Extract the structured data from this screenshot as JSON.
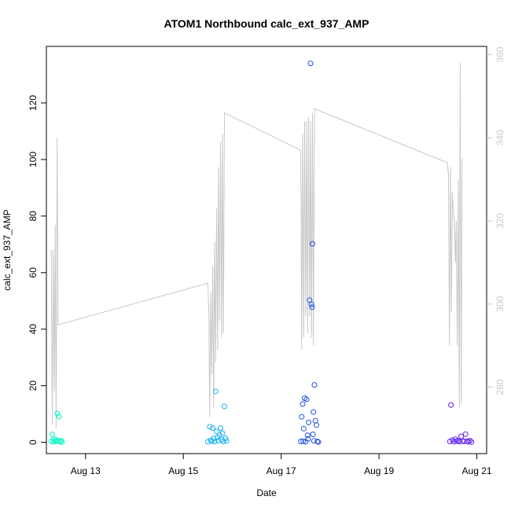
{
  "chart_data": {
    "type": "scatter",
    "title": "ATOM1 Northbound calc_ext_937_AMP",
    "xlabel": "Date",
    "ylabel": "calc_ext_937_AMP",
    "x_ticks": [
      "Aug 13",
      "Aug 15",
      "Aug 17",
      "Aug 19",
      "Aug 21"
    ],
    "y_ticks": [
      "0",
      "20",
      "40",
      "60",
      "80",
      "100",
      "120"
    ],
    "y2_ticks": [
      "280",
      "300",
      "320",
      "340",
      "360"
    ],
    "xlim": [
      12.2,
      21.2
    ],
    "ylim": [
      -4,
      140
    ],
    "y2lim": [
      264,
      362
    ],
    "x_tick_values": [
      13,
      15,
      17,
      19,
      21
    ],
    "y_tick_values": [
      0,
      20,
      40,
      60,
      80,
      100,
      120
    ],
    "y2_tick_values": [
      280,
      300,
      320,
      340,
      360
    ],
    "grid": false,
    "legend": "none",
    "colors": {
      "secondary_line": "#c8c8c8",
      "right_axis": "#c8c8c8",
      "points": [
        "#00f5c8",
        "#1ab2f0",
        "#2050e8",
        "#6020f0"
      ]
    },
    "points": [
      {
        "x": 12.3,
        "y": 0.4
      },
      {
        "x": 12.32,
        "y": 2.8
      },
      {
        "x": 12.34,
        "y": 0.2
      },
      {
        "x": 12.36,
        "y": 1.1
      },
      {
        "x": 12.38,
        "y": 0.3
      },
      {
        "x": 12.4,
        "y": 0.8
      },
      {
        "x": 12.42,
        "y": 10.2
      },
      {
        "x": 12.44,
        "y": 0.5
      },
      {
        "x": 12.46,
        "y": 9.1
      },
      {
        "x": 12.48,
        "y": 0.2
      },
      {
        "x": 12.5,
        "y": 0.6
      },
      {
        "x": 12.52,
        "y": 0.1
      },
      {
        "x": 15.5,
        "y": 0.2
      },
      {
        "x": 15.54,
        "y": 5.5
      },
      {
        "x": 15.58,
        "y": 0.4
      },
      {
        "x": 15.6,
        "y": 5.0
      },
      {
        "x": 15.62,
        "y": 1.3
      },
      {
        "x": 15.64,
        "y": 0.3
      },
      {
        "x": 15.66,
        "y": 18.0
      },
      {
        "x": 15.68,
        "y": 3.8
      },
      {
        "x": 15.7,
        "y": 1.8
      },
      {
        "x": 15.72,
        "y": 0.6
      },
      {
        "x": 15.74,
        "y": 2.6
      },
      {
        "x": 15.76,
        "y": 5.0
      },
      {
        "x": 15.78,
        "y": 0.9
      },
      {
        "x": 15.8,
        "y": 3.2
      },
      {
        "x": 15.82,
        "y": 0.3
      },
      {
        "x": 15.84,
        "y": 12.7
      },
      {
        "x": 15.86,
        "y": 1.4
      },
      {
        "x": 15.88,
        "y": 0.5
      },
      {
        "x": 15.56,
        "y": 0.7
      },
      {
        "x": 17.4,
        "y": 0.3
      },
      {
        "x": 17.42,
        "y": 9.0
      },
      {
        "x": 17.44,
        "y": 13.5
      },
      {
        "x": 17.46,
        "y": 4.8
      },
      {
        "x": 17.48,
        "y": 15.6
      },
      {
        "x": 17.5,
        "y": 0.2
      },
      {
        "x": 17.52,
        "y": 15.2
      },
      {
        "x": 17.54,
        "y": 2.5
      },
      {
        "x": 17.56,
        "y": 7.0
      },
      {
        "x": 17.58,
        "y": 50.3
      },
      {
        "x": 17.6,
        "y": 134.0
      },
      {
        "x": 17.62,
        "y": 48.8
      },
      {
        "x": 17.63,
        "y": 47.8
      },
      {
        "x": 17.64,
        "y": 70.2
      },
      {
        "x": 17.65,
        "y": 2.8
      },
      {
        "x": 17.66,
        "y": 10.7
      },
      {
        "x": 17.67,
        "y": 0.5
      },
      {
        "x": 17.68,
        "y": 20.3
      },
      {
        "x": 17.7,
        "y": 7.6
      },
      {
        "x": 17.72,
        "y": 6.1
      },
      {
        "x": 17.74,
        "y": 0.3
      },
      {
        "x": 17.76,
        "y": 0.1
      },
      {
        "x": 17.45,
        "y": 0.4
      },
      {
        "x": 17.55,
        "y": 1.2
      },
      {
        "x": 20.45,
        "y": 0.3
      },
      {
        "x": 20.47,
        "y": 13.2
      },
      {
        "x": 20.5,
        "y": 0.8
      },
      {
        "x": 20.53,
        "y": 0.2
      },
      {
        "x": 20.56,
        "y": 1.1
      },
      {
        "x": 20.59,
        "y": 0.4
      },
      {
        "x": 20.62,
        "y": 0.6
      },
      {
        "x": 20.65,
        "y": 0.2
      },
      {
        "x": 20.68,
        "y": 2.1
      },
      {
        "x": 20.71,
        "y": 0.5
      },
      {
        "x": 20.74,
        "y": 0.3
      },
      {
        "x": 20.77,
        "y": 2.9
      },
      {
        "x": 20.8,
        "y": 0.4
      },
      {
        "x": 20.83,
        "y": 0.2
      },
      {
        "x": 20.86,
        "y": 0.6
      },
      {
        "x": 20.89,
        "y": 0.1
      }
    ],
    "secondary_line": [
      {
        "x": 12.3,
        "y": 313
      },
      {
        "x": 12.32,
        "y": 271
      },
      {
        "x": 12.34,
        "y": 313
      },
      {
        "x": 12.36,
        "y": 279
      },
      {
        "x": 12.38,
        "y": 319
      },
      {
        "x": 12.4,
        "y": 270
      },
      {
        "x": 12.42,
        "y": 340
      },
      {
        "x": 12.44,
        "y": 295
      },
      {
        "x": 15.5,
        "y": 305
      },
      {
        "x": 15.52,
        "y": 299
      },
      {
        "x": 15.54,
        "y": 273
      },
      {
        "x": 15.56,
        "y": 303
      },
      {
        "x": 15.58,
        "y": 283
      },
      {
        "x": 15.6,
        "y": 309
      },
      {
        "x": 15.62,
        "y": 275
      },
      {
        "x": 15.64,
        "y": 315
      },
      {
        "x": 15.66,
        "y": 286
      },
      {
        "x": 15.68,
        "y": 323
      },
      {
        "x": 15.7,
        "y": 289
      },
      {
        "x": 15.72,
        "y": 333
      },
      {
        "x": 15.74,
        "y": 296
      },
      {
        "x": 15.76,
        "y": 339
      },
      {
        "x": 15.78,
        "y": 292
      },
      {
        "x": 15.8,
        "y": 341
      },
      {
        "x": 15.82,
        "y": 293
      },
      {
        "x": 15.84,
        "y": 346
      },
      {
        "x": 17.4,
        "y": 337
      },
      {
        "x": 17.42,
        "y": 289
      },
      {
        "x": 17.44,
        "y": 341
      },
      {
        "x": 17.46,
        "y": 292
      },
      {
        "x": 17.48,
        "y": 344
      },
      {
        "x": 17.5,
        "y": 297
      },
      {
        "x": 17.52,
        "y": 344
      },
      {
        "x": 17.54,
        "y": 293
      },
      {
        "x": 17.56,
        "y": 345
      },
      {
        "x": 17.58,
        "y": 297
      },
      {
        "x": 17.6,
        "y": 344
      },
      {
        "x": 17.62,
        "y": 292
      },
      {
        "x": 17.64,
        "y": 346
      },
      {
        "x": 17.66,
        "y": 290
      },
      {
        "x": 17.68,
        "y": 347
      },
      {
        "x": 20.4,
        "y": 334
      },
      {
        "x": 20.42,
        "y": 331
      },
      {
        "x": 20.44,
        "y": 290
      },
      {
        "x": 20.46,
        "y": 333
      },
      {
        "x": 20.48,
        "y": 298
      },
      {
        "x": 20.5,
        "y": 327
      },
      {
        "x": 20.52,
        "y": 322
      },
      {
        "x": 20.54,
        "y": 320
      },
      {
        "x": 20.56,
        "y": 310
      },
      {
        "x": 20.58,
        "y": 320
      },
      {
        "x": 20.6,
        "y": 290
      },
      {
        "x": 20.62,
        "y": 330
      },
      {
        "x": 20.64,
        "y": 275
      },
      {
        "x": 20.66,
        "y": 358
      },
      {
        "x": 20.68,
        "y": 276
      },
      {
        "x": 20.7,
        "y": 335
      }
    ]
  }
}
